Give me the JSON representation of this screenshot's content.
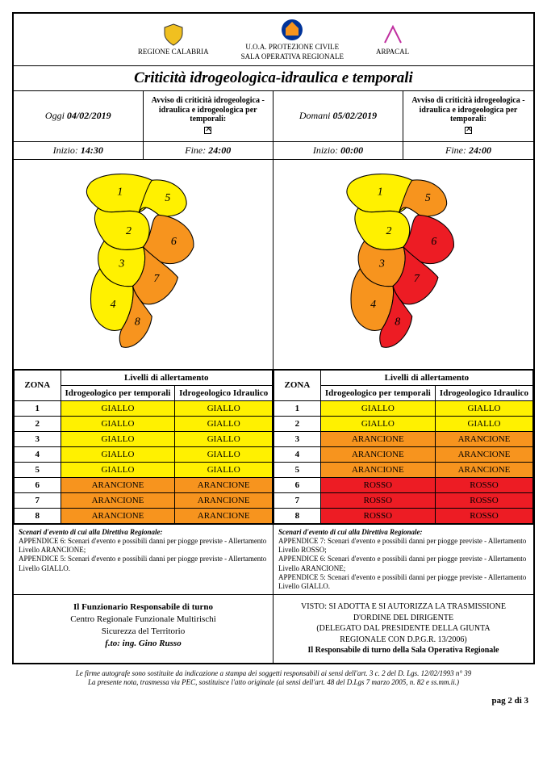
{
  "colors": {
    "giallo": "#fff100",
    "arancione": "#f7941e",
    "rosso": "#ed1c24",
    "border": "#000000",
    "bg": "#ffffff"
  },
  "logos": {
    "left": "REGIONE CALABRIA",
    "center_top": "U.O.A. PROTEZIONE CIVILE",
    "center_bottom": "SALA OPERATIVA REGIONALE",
    "right": "ARPACAL"
  },
  "title": "Criticità idrogeologica-idraulica e temporali",
  "today": {
    "label": "Oggi",
    "date": "04/02/2019",
    "avviso_title": "Avviso di criticità idrogeologica - idraulica e idrogeologica per temporali:",
    "inizio_label": "Inizio:",
    "inizio": "14:30",
    "fine_label": "Fine:",
    "fine": "24:00",
    "map": {
      "zones": [
        {
          "id": "1",
          "color": "#fff100"
        },
        {
          "id": "2",
          "color": "#fff100"
        },
        {
          "id": "3",
          "color": "#fff100"
        },
        {
          "id": "4",
          "color": "#fff100"
        },
        {
          "id": "5",
          "color": "#fff100"
        },
        {
          "id": "6",
          "color": "#f7941e"
        },
        {
          "id": "7",
          "color": "#f7941e"
        },
        {
          "id": "8",
          "color": "#f7941e"
        }
      ]
    },
    "table": {
      "headers": {
        "zona": "ZONA",
        "livelli": "Livelli di allertamento",
        "col1": "Idrogeologico per temporali",
        "col2": "Idrogeologico Idraulico"
      },
      "rows": [
        {
          "z": "1",
          "a": "GIALLO",
          "ac": "#fff100",
          "b": "GIALLO",
          "bc": "#fff100"
        },
        {
          "z": "2",
          "a": "GIALLO",
          "ac": "#fff100",
          "b": "GIALLO",
          "bc": "#fff100"
        },
        {
          "z": "3",
          "a": "GIALLO",
          "ac": "#fff100",
          "b": "GIALLO",
          "bc": "#fff100"
        },
        {
          "z": "4",
          "a": "GIALLO",
          "ac": "#fff100",
          "b": "GIALLO",
          "bc": "#fff100"
        },
        {
          "z": "5",
          "a": "GIALLO",
          "ac": "#fff100",
          "b": "GIALLO",
          "bc": "#fff100"
        },
        {
          "z": "6",
          "a": "ARANCIONE",
          "ac": "#f7941e",
          "b": "ARANCIONE",
          "bc": "#f7941e"
        },
        {
          "z": "7",
          "a": "ARANCIONE",
          "ac": "#f7941e",
          "b": "ARANCIONE",
          "bc": "#f7941e"
        },
        {
          "z": "8",
          "a": "ARANCIONE",
          "ac": "#f7941e",
          "b": "ARANCIONE",
          "bc": "#f7941e"
        }
      ]
    },
    "scenario_title": "Scenari d'evento di cui alla Direttiva Regionale:",
    "scenario_lines": [
      "APPENDICE 6: Scenari d'evento e possibili danni per piogge previste - Allertamento Livello ARANCIONE;",
      "APPENDICE 5: Scenari d'evento e possibili danni per piogge previste - Allertamento Livello GIALLO."
    ]
  },
  "tomorrow": {
    "label": "Domani",
    "date": "05/02/2019",
    "avviso_title": "Avviso di criticità idrogeologica - idraulica e idrogeologica per temporali:",
    "inizio_label": "Inizio:",
    "inizio": "00:00",
    "fine_label": "Fine:",
    "fine": "24:00",
    "map": {
      "zones": [
        {
          "id": "1",
          "color": "#fff100"
        },
        {
          "id": "2",
          "color": "#fff100"
        },
        {
          "id": "3",
          "color": "#f7941e"
        },
        {
          "id": "4",
          "color": "#f7941e"
        },
        {
          "id": "5",
          "color": "#f7941e"
        },
        {
          "id": "6",
          "color": "#ed1c24"
        },
        {
          "id": "7",
          "color": "#ed1c24"
        },
        {
          "id": "8",
          "color": "#ed1c24"
        }
      ]
    },
    "table": {
      "headers": {
        "zona": "ZONA",
        "livelli": "Livelli di allertamento",
        "col1": "Idrogeologico per temporali",
        "col2": "Idrogeologico Idraulico"
      },
      "rows": [
        {
          "z": "1",
          "a": "GIALLO",
          "ac": "#fff100",
          "b": "GIALLO",
          "bc": "#fff100"
        },
        {
          "z": "2",
          "a": "GIALLO",
          "ac": "#fff100",
          "b": "GIALLO",
          "bc": "#fff100"
        },
        {
          "z": "3",
          "a": "ARANCIONE",
          "ac": "#f7941e",
          "b": "ARANCIONE",
          "bc": "#f7941e"
        },
        {
          "z": "4",
          "a": "ARANCIONE",
          "ac": "#f7941e",
          "b": "ARANCIONE",
          "bc": "#f7941e"
        },
        {
          "z": "5",
          "a": "ARANCIONE",
          "ac": "#f7941e",
          "b": "ARANCIONE",
          "bc": "#f7941e"
        },
        {
          "z": "6",
          "a": "ROSSO",
          "ac": "#ed1c24",
          "b": "ROSSO",
          "bc": "#ed1c24"
        },
        {
          "z": "7",
          "a": "ROSSO",
          "ac": "#ed1c24",
          "b": "ROSSO",
          "bc": "#ed1c24"
        },
        {
          "z": "8",
          "a": "ROSSO",
          "ac": "#ed1c24",
          "b": "ROSSO",
          "bc": "#ed1c24"
        }
      ]
    },
    "scenario_title": "Scenari d'evento di cui alla Direttiva Regionale:",
    "scenario_lines": [
      "APPENDICE 7: Scenari d'evento e possibili danni per piogge previste - Allertamento Livello ROSSO;",
      "APPENDICE 6: Scenari d'evento e possibili danni per piogge previste - Allertamento Livello ARANCIONE;",
      "APPENDICE 5: Scenari d'evento e possibili danni per piogge previste - Allertamento Livello GIALLO."
    ]
  },
  "sig": {
    "left": {
      "l1": "Il Funzionario Responsabile di turno",
      "l2": "Centro Regionale Funzionale Multirischi",
      "l3": "Sicurezza del Territorio",
      "l4": "f.to: ing. Gino Russo"
    },
    "right": {
      "l1": "VISTO: SI ADOTTA E SI AUTORIZZA LA TRASMISSIONE",
      "l2": "D'ORDINE DEL DIRIGENTE",
      "l3": "(DELEGATO DAL PRESIDENTE DELLA GIUNTA",
      "l4": "REGIONALE CON D.P.G.R. 13/2006)",
      "l5": "Il Responsabile di turno della Sala Operativa Regionale"
    }
  },
  "footnote": {
    "l1": "Le firme autografe sono sostituite da indicazione a stampa dei soggetti responsabili ai sensi dell'art. 3 c. 2 del D. Lgs. 12/02/1993 n° 39",
    "l2": "La presente nota, trasmessa via PEC, sostituisce l'atto originale (ai sensi dell'art. 48 del D.Lgs 7 marzo 2005, n. 82 e ss.mm.ii.)"
  },
  "pagenum": "pag 2 di 3"
}
